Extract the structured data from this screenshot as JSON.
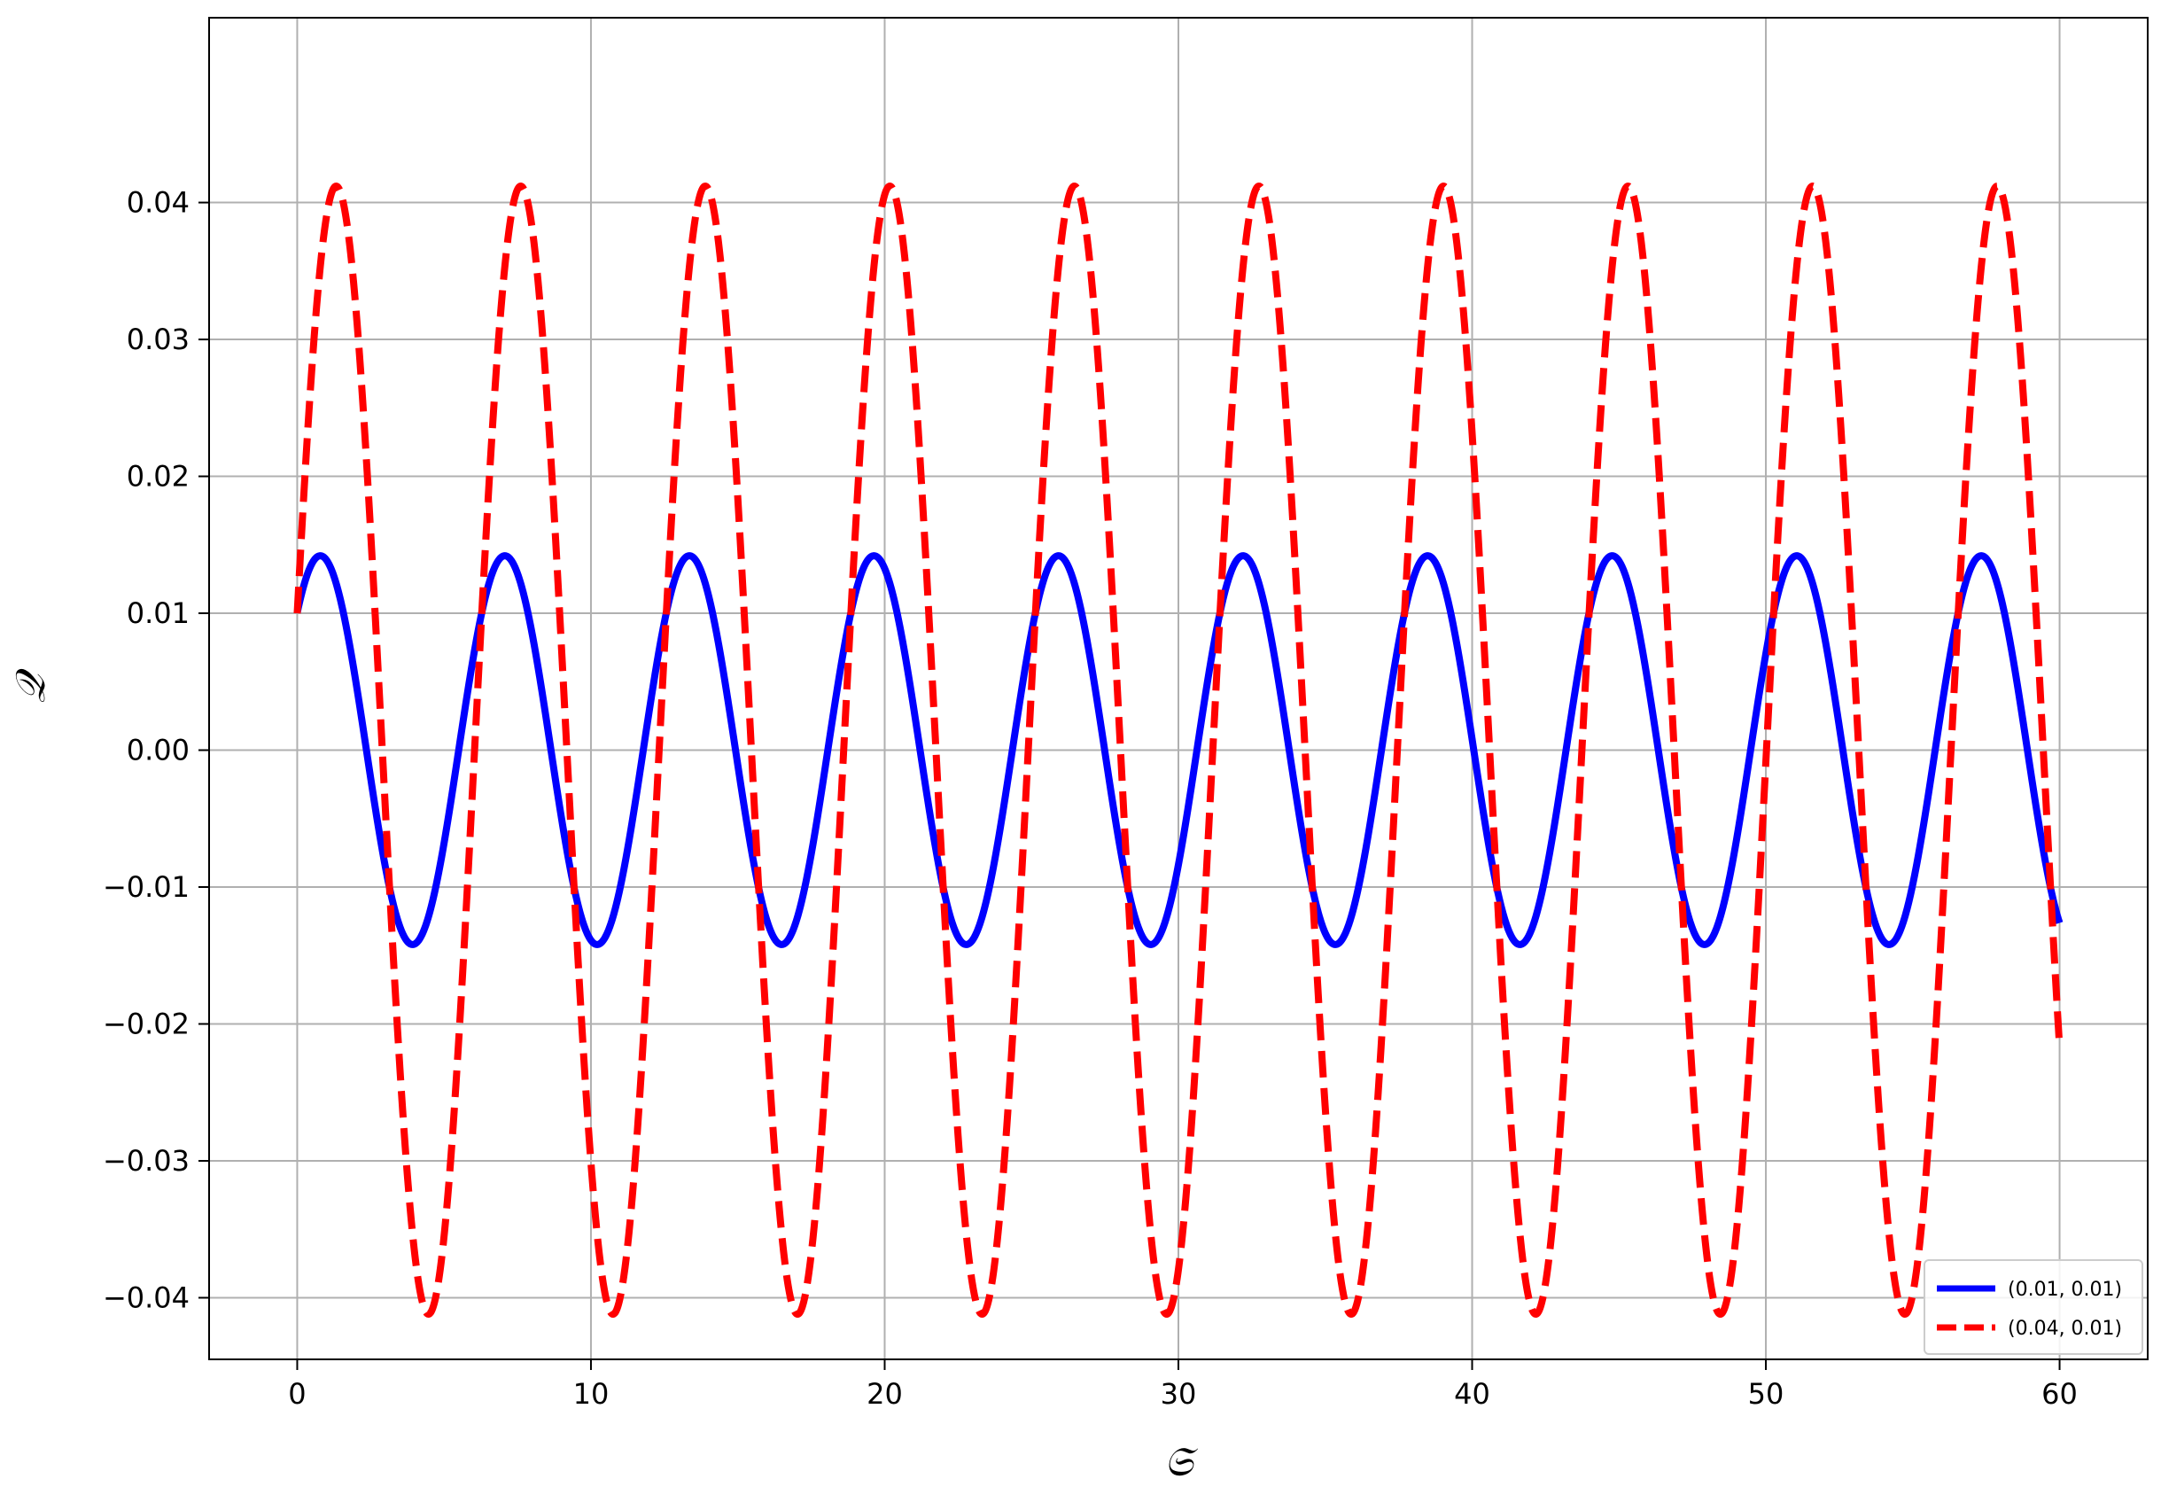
{
  "chart_data": {
    "type": "line",
    "title": "",
    "xlabel": "𝔖",
    "ylabel": "𝒬",
    "xlim": [
      -3,
      63
    ],
    "ylim": [
      -0.0445,
      0.0535
    ],
    "grid": true,
    "legend_position": "bottom-right",
    "x_ticks": [
      0,
      10,
      20,
      30,
      40,
      50,
      60
    ],
    "x_tick_labels": [
      "0",
      "10",
      "20",
      "30",
      "40",
      "50",
      "60"
    ],
    "y_ticks": [
      0.04,
      0.03,
      0.02,
      0.01,
      0.0,
      -0.01,
      -0.02,
      -0.03,
      -0.04
    ],
    "y_tick_labels": [
      "0.04",
      "0.03",
      "0.02",
      "0.01",
      "0.00",
      "−0.01",
      "−0.02",
      "−0.03",
      "−0.04"
    ],
    "series": [
      {
        "name": "(0.01, 0.01)",
        "color": "#0000ff",
        "style": "solid",
        "amplitude": 0.0142,
        "phase": 0.7853,
        "angular_frequency": 1.0,
        "x_range": [
          0,
          60
        ]
      },
      {
        "name": "(0.04, 0.01)",
        "color": "#ff0000",
        "style": "dashed",
        "amplitude": 0.0412,
        "phase": 0.245,
        "angular_frequency": 1.0,
        "x_range": [
          0,
          60
        ]
      }
    ]
  }
}
